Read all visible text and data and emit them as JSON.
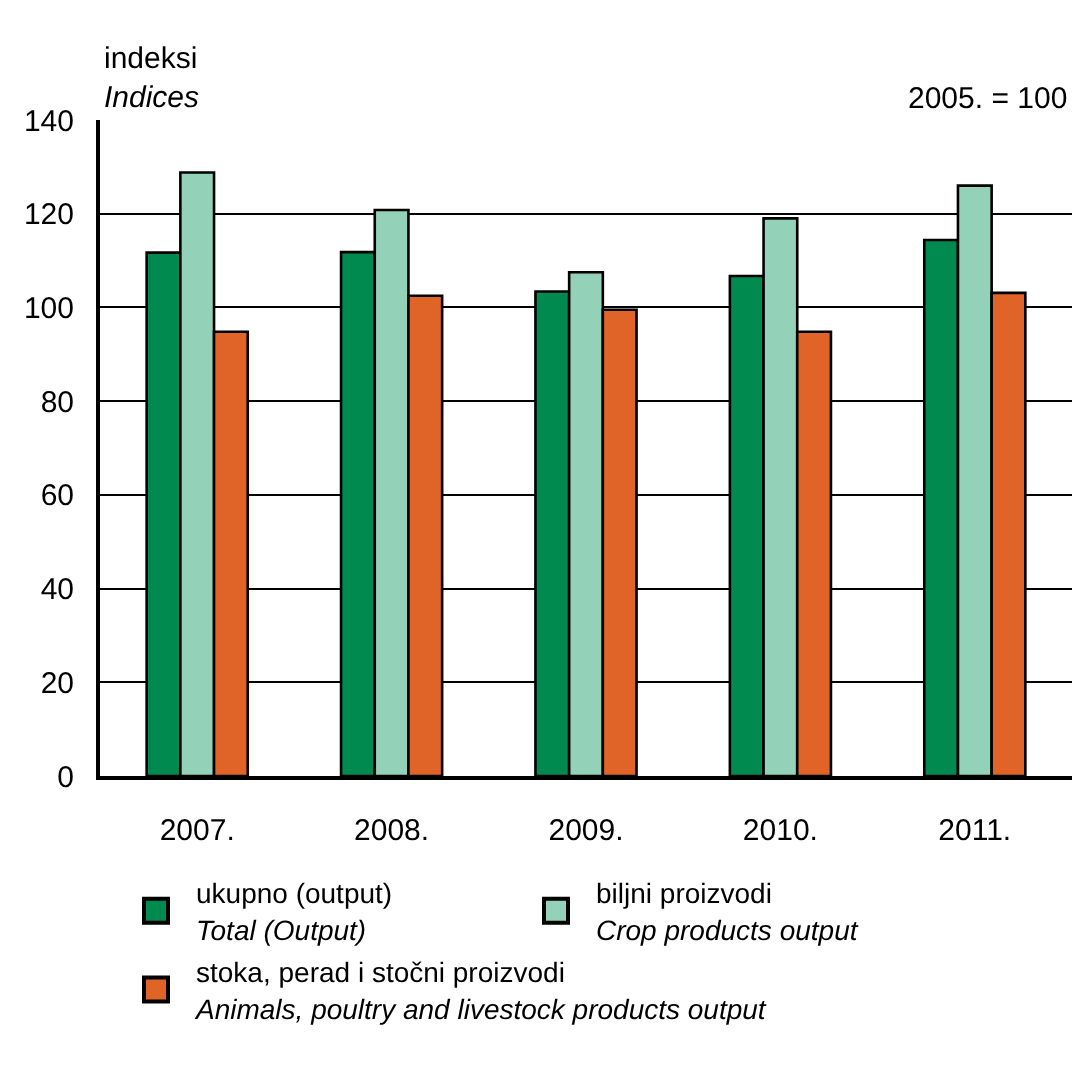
{
  "chart_data": {
    "type": "bar",
    "ylabel": "indeksi\nIndices",
    "annotations": [
      "2005. = 100"
    ],
    "categories": [
      "2007.",
      "2008.",
      "2009.",
      "2010.",
      "2011."
    ],
    "series": [
      {
        "name": "ukupno (output)\nTotal (Output)",
        "color": "#008a50",
        "values": [
          111.7,
          111.8,
          103.4,
          106.7,
          114.4
        ]
      },
      {
        "name": "biljni proizvodi\nCrop products output",
        "color": "#93d1b8",
        "values": [
          128.8,
          120.8,
          107.5,
          119.0,
          126.0
        ]
      },
      {
        "name": "stoka, perad i stočni proizvodi\nAnimals, poultry and livestock products output",
        "color": "#e06428",
        "values": [
          94.8,
          102.5,
          99.5,
          94.8,
          103.1
        ]
      }
    ],
    "ylim": [
      0,
      140
    ],
    "yticks": [
      0,
      20,
      40,
      60,
      80,
      100,
      120,
      140
    ],
    "grid": "y",
    "legend": "bottom"
  }
}
